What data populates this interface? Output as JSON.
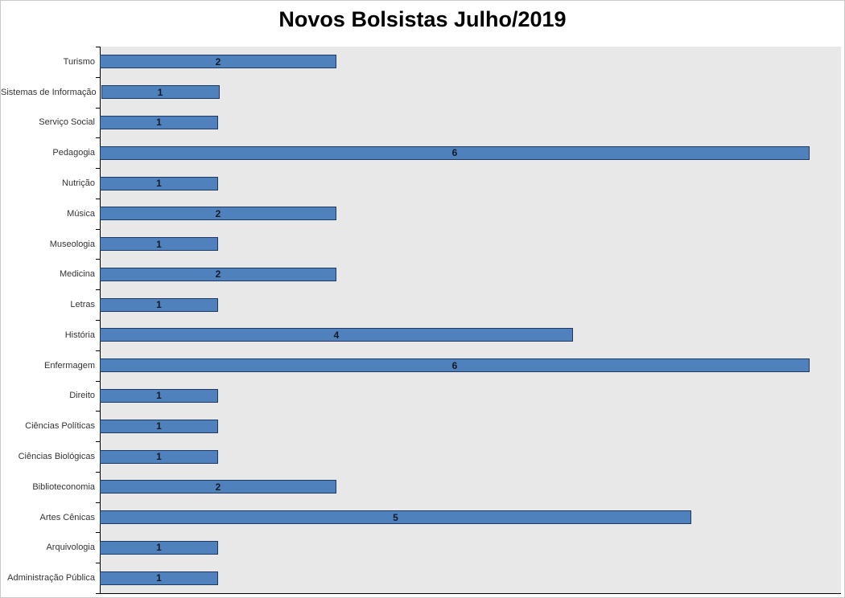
{
  "title": "Novos Bolsistas Julho/2019",
  "chart_data": {
    "type": "bar",
    "orientation": "horizontal",
    "title": "Novos Bolsistas Julho/2019",
    "categories": [
      "Turismo",
      "Sistemas de Informação",
      "Serviço Social",
      "Pedagogia",
      "Nutrição",
      "Música",
      "Museologia",
      "Medicina",
      "Letras",
      "História",
      "Enfermagem",
      "Direito",
      "Ciências Políticas",
      "Ciências Biológicas",
      "Biblioteconomia",
      "Artes Cênicas",
      "Arquivologia",
      "Administração Pública"
    ],
    "values": [
      2,
      1,
      1,
      6,
      1,
      2,
      1,
      2,
      1,
      4,
      6,
      1,
      1,
      1,
      2,
      5,
      1,
      1
    ],
    "xlabel": "",
    "ylabel": "",
    "xlim": [
      0,
      6.27
    ],
    "grid": false,
    "legend": false,
    "value_labels": true,
    "colors": {
      "bar_fill": "#4F81BD",
      "bar_border": "#1F3864",
      "plot_background": "#E8E8E8",
      "axis": "#000000",
      "label_text": "#333333",
      "value_text": "#121a26",
      "title_text": "#000000"
    }
  }
}
